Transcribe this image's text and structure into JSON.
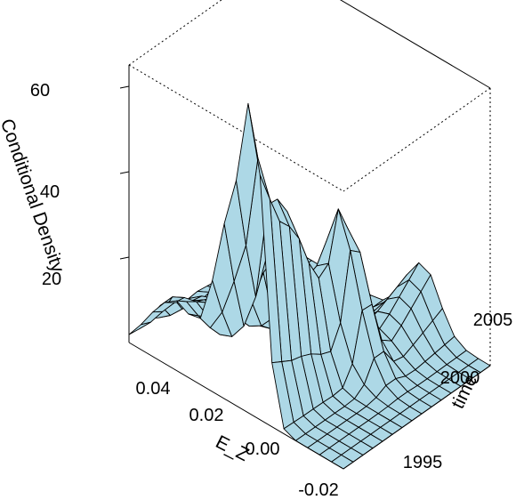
{
  "chart_data": {
    "type": "surface",
    "zlabel": "Conditional Density",
    "xlabel": "E_Z",
    "ylabel": "time",
    "z_ticks": [
      "20",
      "40",
      "60"
    ],
    "x_ticks": [
      "0.04",
      "0.02",
      "0.00",
      "-0.02"
    ],
    "y_ticks": [
      "1995",
      "2000",
      "2005"
    ],
    "zlim": [
      0,
      65
    ],
    "surface_color": "#add8e6",
    "edge_color": "#000000",
    "box": "dotted back edges",
    "e_z_values": [
      0.046,
      0.042,
      0.038,
      0.034,
      0.03,
      0.026,
      0.022,
      0.018,
      0.014,
      0.01,
      0.006,
      0.002,
      -0.002,
      -0.006,
      -0.01,
      -0.014,
      -0.018,
      -0.022,
      -0.026
    ],
    "time_values": [
      1993,
      1994,
      1995,
      1996,
      1997,
      1998,
      1999,
      2000,
      2001,
      2002,
      2003,
      2004,
      2005,
      2006,
      2007,
      2008
    ]
  }
}
